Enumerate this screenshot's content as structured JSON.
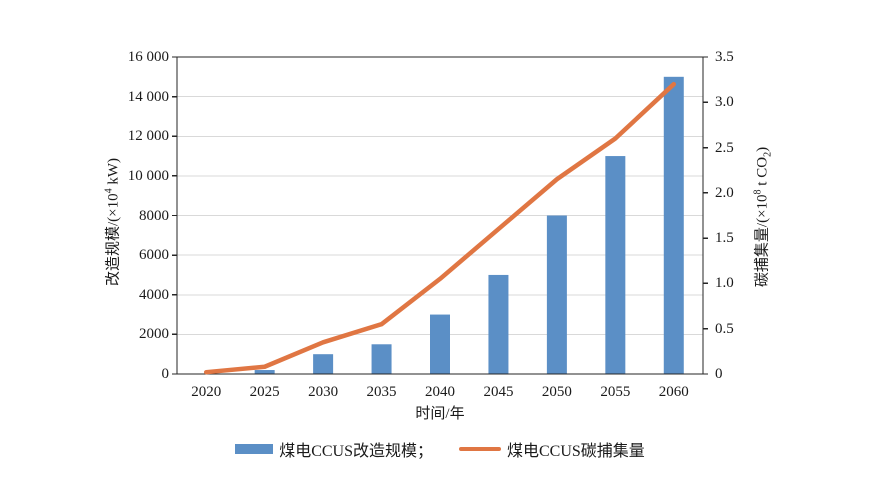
{
  "chart_data": {
    "type": "bar",
    "combo_types": [
      "bar",
      "line"
    ],
    "title": "",
    "xlabel": "时间/年",
    "categories": [
      "2020",
      "2025",
      "2030",
      "2035",
      "2040",
      "2045",
      "2050",
      "2055",
      "2060"
    ],
    "series": [
      {
        "name": "煤电CCUS改造规模",
        "type": "bar",
        "axis": "left",
        "values": [
          0,
          200,
          1000,
          1500,
          3000,
          5000,
          8000,
          11000,
          15000
        ]
      },
      {
        "name": "煤电CCUS碳捕集量",
        "type": "line",
        "axis": "right",
        "values": [
          0.02,
          0.08,
          0.35,
          0.55,
          1.05,
          1.6,
          2.15,
          2.6,
          3.2
        ]
      }
    ],
    "left_axis": {
      "title_prefix": "改造规模/(×10",
      "title_sup": "4",
      "title_suffix": " kW)",
      "min": 0,
      "max": 16000,
      "tick_values": [
        0,
        2000,
        4000,
        6000,
        8000,
        10000,
        12000,
        14000,
        16000
      ],
      "tick_labels": [
        "0",
        "2000",
        "4000",
        "6000",
        "8000",
        "10 000",
        "12 000",
        "14 000",
        "16 000"
      ]
    },
    "right_axis": {
      "title_prefix": "碳捕集量/(×10",
      "title_sup": "8",
      "title_mid": " t CO",
      "title_sub": "2",
      "title_suffix": ")",
      "min": 0,
      "max": 3.5,
      "tick_values": [
        0,
        0.5,
        1.0,
        1.5,
        2.0,
        2.5,
        3.0,
        3.5
      ],
      "tick_labels": [
        "0",
        "0.5",
        "1.0",
        "1.5",
        "2.0",
        "2.5",
        "3.0",
        "3.5"
      ]
    },
    "grid": true,
    "legend_position": "bottom"
  },
  "legend": {
    "bar_label": "煤电CCUS改造规模；",
    "line_label": "煤电CCUS碳捕集量"
  },
  "colors": {
    "bar": "#5B8FC6",
    "line": "#E07643",
    "grid": "#D9D9D9",
    "frame": "#262626",
    "text": "#1A1A1A"
  }
}
